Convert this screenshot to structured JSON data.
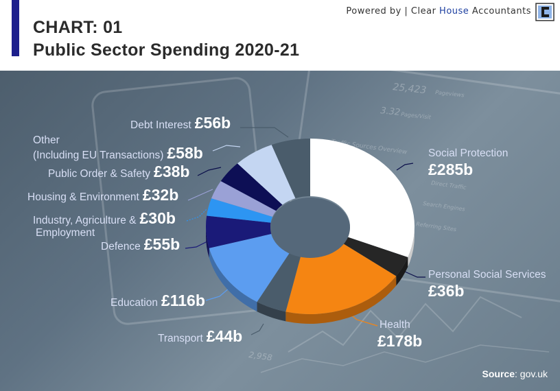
{
  "header": {
    "kicker": "CHART: 01",
    "title": "Public Sector Spending 2020-21",
    "powered_prefix": "Powered by | Clear ",
    "powered_highlight": "House",
    "powered_suffix": " Accountants"
  },
  "source": {
    "label": "Source",
    "value": ": gov.uk"
  },
  "colors": {
    "accent": "#1d1f8c",
    "highlight": "#1d3fa0"
  },
  "chart_data": {
    "type": "pie",
    "unit": "£b",
    "series": [
      {
        "name": "Social Protection",
        "value": 285,
        "value_label": "£285b",
        "color": "#ffffff"
      },
      {
        "name": "Personal Social Services",
        "value": 36,
        "value_label": "£36b",
        "color": "#262626"
      },
      {
        "name": "Health",
        "value": 178,
        "value_label": "£178b",
        "color": "#f58512"
      },
      {
        "name": "Transport",
        "value": 44,
        "value_label": "£44b",
        "color": "#4a5c6b"
      },
      {
        "name": "Education",
        "value": 116,
        "value_label": "£116b",
        "color": "#5c9df0"
      },
      {
        "name": "Defence",
        "value": 55,
        "value_label": "£55b",
        "color": "#1a1a78"
      },
      {
        "name": "Industry, Agriculture & Employment",
        "value": 30,
        "value_label": "£30b",
        "color": "#2d95f2"
      },
      {
        "name": "Housing & Environment",
        "value": 32,
        "value_label": "£32b",
        "color": "#9aa1d6"
      },
      {
        "name": "Public Order & Safety",
        "value": 38,
        "value_label": "£38b",
        "color": "#0d0f55"
      },
      {
        "name": "Other (Including EU Transactions)",
        "value": 58,
        "value_label": "£58b",
        "color": "#c4d6f2"
      },
      {
        "name": "Debt Interest",
        "value": 56,
        "value_label": "£56b",
        "color": "#4a5c6b"
      }
    ],
    "labels": {
      "social_protection": "Social Protection",
      "personal_social_services": "Personal Social Services",
      "health": "Health",
      "transport": "Transport",
      "education": "Education",
      "defence": "Defence",
      "industry_line1": "Industry, Agriculture &",
      "industry_line2": "Employment",
      "housing": "Housing & Environment",
      "public_order": "Public Order & Safety",
      "other_line1": "Other",
      "other_line2": "(Including EU Transactions)",
      "debt_interest": "Debt Interest"
    }
  },
  "background_text": {
    "pageviews": "25,423",
    "pageviews_label": "Pageviews",
    "pages_visit": "3.32",
    "pages_visit_label": "Pages/Visit",
    "traffic_sources": "Traffic Sources Overview",
    "direct_traffic": "Direct Traffic",
    "search_engines": "Search Engines",
    "referring_sites": "Referring Sites",
    "visitors": "2,958"
  }
}
